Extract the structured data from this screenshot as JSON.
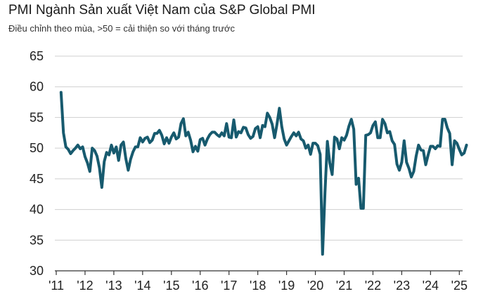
{
  "header": {
    "title": "PMI Ngành Sản xuất Việt Nam của S&P Global PMI",
    "subtitle": "Điều chỉnh theo mùa, >50 = cải thiện so với tháng trước"
  },
  "chart_data": {
    "type": "line",
    "title": "PMI Ngành Sản xuất Việt Nam của S&P Global PMI",
    "subtitle": "Điều chỉnh theo mùa, >50 = cải thiện so với tháng trước",
    "xlabel": "",
    "ylabel": "",
    "ylim": [
      30,
      65
    ],
    "yticks": [
      30,
      35,
      40,
      45,
      50,
      55,
      60,
      65
    ],
    "xticks": [
      "'11",
      "'12",
      "'13",
      "'14",
      "'15",
      "'16",
      "'17",
      "'18",
      "'19",
      "'20",
      "'21",
      "'22",
      "'23",
      "'24",
      "'25"
    ],
    "grid": true,
    "series_color": "#175a6e",
    "series": [
      {
        "name": "PMI",
        "start": "2011-03",
        "frequency": "monthly",
        "values": [
          59.1,
          52.5,
          50.2,
          49.8,
          49.1,
          49.6,
          50.0,
          50.5,
          49.9,
          50.2,
          48.6,
          47.6,
          46.2,
          50.0,
          49.6,
          48.7,
          46.8,
          43.6,
          47.8,
          49.3,
          48.9,
          50.5,
          49.2,
          50.2,
          48.0,
          50.5,
          51.0,
          48.3,
          46.4,
          48.2,
          49.4,
          50.2,
          50.2,
          51.7,
          51.0,
          51.6,
          51.8,
          50.9,
          51.3,
          52.4,
          52.4,
          52.9,
          52.1,
          50.7,
          51.7,
          50.8,
          51.8,
          52.5,
          51.5,
          51.8,
          54.0,
          54.8,
          52.0,
          52.6,
          51.3,
          49.4,
          50.3,
          49.5,
          51.4,
          51.6,
          50.5,
          51.5,
          52.2,
          52.6,
          52.6,
          52.2,
          51.9,
          52.5,
          52.0,
          54.0,
          51.8,
          51.7,
          54.6,
          51.8,
          52.7,
          52.5,
          53.4,
          53.3,
          52.2,
          51.6,
          51.9,
          53.2,
          53.5,
          51.7,
          53.7,
          53.5,
          55.7,
          55.0,
          53.9,
          51.7,
          53.9,
          56.5,
          53.5,
          51.5,
          50.5,
          51.2,
          51.9,
          52.5,
          52.0,
          52.6,
          51.5,
          51.2,
          50.0,
          50.5,
          49.0,
          50.8,
          50.8,
          50.4,
          49.0,
          32.7,
          42.7,
          51.1,
          47.6,
          45.7,
          51.8,
          51.5,
          49.9,
          51.7,
          51.3,
          52.1,
          53.6,
          54.7,
          53.1,
          44.1,
          45.1,
          40.2,
          40.2,
          52.1,
          52.2,
          52.5,
          53.7,
          54.3,
          51.7,
          51.7,
          54.7,
          54.0,
          52.5,
          52.7,
          51.2,
          50.6,
          47.4,
          46.4,
          47.7,
          51.2,
          47.7,
          46.7,
          45.3,
          46.2,
          48.7,
          50.5,
          49.7,
          49.6,
          47.3,
          48.9,
          50.3,
          50.3,
          49.9,
          50.4,
          50.3,
          54.7,
          54.7,
          53.3,
          52.4,
          47.3,
          51.2,
          50.8,
          49.8,
          48.9,
          49.2,
          50.5
        ]
      }
    ]
  }
}
